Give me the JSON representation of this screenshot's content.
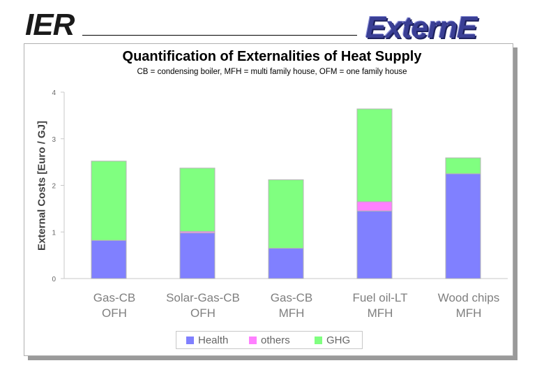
{
  "header": {
    "logo_left": "IER",
    "logo_right": "ExternE"
  },
  "chart_data": {
    "type": "bar",
    "stacked": true,
    "title": "Quantification of Externalities of Heat Supply",
    "subtitle": "CB = condensing boiler, MFH = multi family house, OFM = one family house",
    "ylabel": "External Costs [Euro / GJ]",
    "xlabel": "",
    "ylim": [
      0,
      4
    ],
    "yticks": [
      0,
      1,
      2,
      3,
      4
    ],
    "categories": [
      [
        "Gas-CB",
        "OFH"
      ],
      [
        "Solar-Gas-CB",
        "OFH"
      ],
      [
        "Gas-CB",
        "MFH"
      ],
      [
        "Fuel oil-LT",
        "MFH"
      ],
      [
        "Wood chips",
        "MFH"
      ]
    ],
    "series": [
      {
        "name": "Health",
        "color": "#8080ff",
        "values": [
          0.82,
          0.98,
          0.65,
          1.45,
          2.25
        ]
      },
      {
        "name": "others",
        "color": "#ff80ff",
        "values": [
          0.0,
          0.03,
          0.0,
          0.2,
          0.0
        ]
      },
      {
        "name": "GHG",
        "color": "#80ff80",
        "values": [
          1.7,
          1.36,
          1.47,
          1.99,
          0.34
        ]
      }
    ],
    "legend": "bottom-center",
    "grid": false
  }
}
